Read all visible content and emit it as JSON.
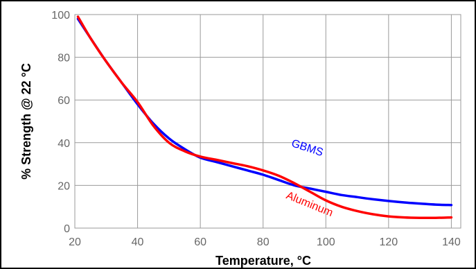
{
  "chart_data": {
    "type": "line",
    "title": "",
    "xlabel": "Temperature, °C",
    "ylabel": "% Strength @ 22 °C",
    "xlim": [
      20,
      143
    ],
    "ylim": [
      0,
      100
    ],
    "x_ticks": [
      20,
      40,
      60,
      80,
      100,
      120,
      140
    ],
    "y_ticks": [
      0,
      20,
      40,
      60,
      80,
      100
    ],
    "grid": true,
    "legend": "none",
    "series": [
      {
        "name": "GBMS",
        "color": "#0000ff",
        "x": [
          21,
          25,
          30,
          35,
          40,
          45,
          50,
          55,
          60,
          65,
          70,
          75,
          80,
          85,
          90,
          95,
          100,
          105,
          110,
          115,
          120,
          125,
          130,
          135,
          140
        ],
        "y": [
          98,
          89,
          78,
          68,
          58,
          49,
          42,
          37,
          33,
          31,
          29,
          27,
          25,
          22.5,
          20,
          18.5,
          17,
          15.5,
          14.5,
          13.5,
          12.7,
          12,
          11.5,
          11,
          10.8
        ]
      },
      {
        "name": "Aluminum",
        "color": "#ff0000",
        "x": [
          21,
          25,
          30,
          35,
          40,
          45,
          50,
          55,
          60,
          65,
          70,
          75,
          80,
          85,
          90,
          95,
          100,
          105,
          110,
          115,
          120,
          125,
          130,
          135,
          140
        ],
        "y": [
          99,
          89,
          78,
          68,
          59,
          48,
          40,
          36,
          33.5,
          32,
          30.5,
          29,
          27,
          24.5,
          21,
          17,
          13,
          10,
          8,
          6.5,
          5.5,
          5,
          4.8,
          4.8,
          5
        ]
      }
    ],
    "annotations": [
      "GBMS",
      "Aluminum"
    ]
  }
}
